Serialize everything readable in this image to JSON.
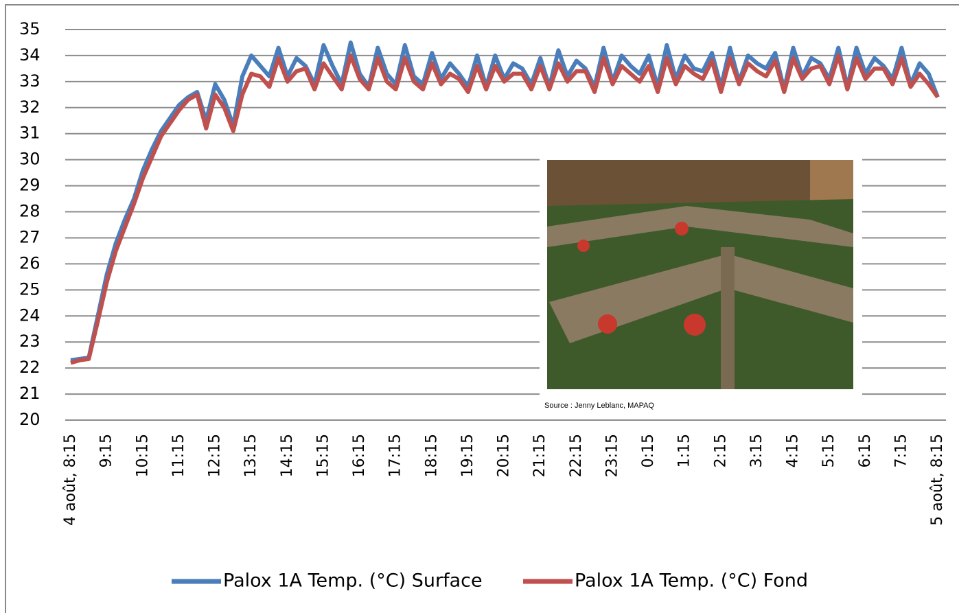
{
  "chart_data": {
    "type": "line",
    "categories": [
      "4 août, 8:15",
      null,
      null,
      null,
      "9:15",
      null,
      null,
      null,
      "10:15",
      null,
      null,
      null,
      "11:15",
      null,
      null,
      null,
      "12:15",
      null,
      null,
      null,
      "13:15",
      null,
      null,
      null,
      "14:15",
      null,
      null,
      null,
      "15:15",
      null,
      null,
      null,
      "16:15",
      null,
      null,
      null,
      "17:15",
      null,
      null,
      null,
      "18:15",
      null,
      null,
      null,
      "19:15",
      null,
      null,
      null,
      "20:15",
      null,
      null,
      null,
      "21:15",
      null,
      null,
      null,
      "22:15",
      null,
      null,
      null,
      "23:15",
      null,
      null,
      null,
      "0:15",
      null,
      null,
      null,
      "1:15",
      null,
      null,
      null,
      "2:15",
      null,
      null,
      null,
      "3:15",
      null,
      null,
      null,
      "4:15",
      null,
      null,
      null,
      "5:15",
      null,
      null,
      null,
      "6:15",
      null,
      null,
      null,
      "7:15",
      null,
      null,
      null,
      "5 août, 8:15"
    ],
    "series": [
      {
        "name": "Palox 1A Temp. (°C) Surface",
        "color": "#4a7ebb",
        "values": [
          22.3,
          22.35,
          22.4,
          24.0,
          25.6,
          26.8,
          27.7,
          28.5,
          29.6,
          30.4,
          31.1,
          31.6,
          32.1,
          32.4,
          32.6,
          31.5,
          32.9,
          32.3,
          31.3,
          33.2,
          34.0,
          33.6,
          33.2,
          34.3,
          33.2,
          33.9,
          33.6,
          32.9,
          34.4,
          33.6,
          32.9,
          34.5,
          33.3,
          32.8,
          34.3,
          33.3,
          32.9,
          34.4,
          33.2,
          32.9,
          34.1,
          33.1,
          33.7,
          33.3,
          32.8,
          34.0,
          32.8,
          34.0,
          33.1,
          33.7,
          33.5,
          32.9,
          33.9,
          32.8,
          34.2,
          33.2,
          33.8,
          33.5,
          32.8,
          34.3,
          33.0,
          34.0,
          33.6,
          33.3,
          34.0,
          32.8,
          34.4,
          33.1,
          34.0,
          33.5,
          33.4,
          34.1,
          32.8,
          34.3,
          33.0,
          34.0,
          33.7,
          33.5,
          34.1,
          32.7,
          34.3,
          33.2,
          33.9,
          33.7,
          33.1,
          34.3,
          32.8,
          34.3,
          33.3,
          33.9,
          33.6,
          33.1,
          34.3,
          32.9,
          33.7,
          33.3,
          32.4
        ]
      },
      {
        "name": "Palox 1A Temp. (°C) Fond",
        "color": "#c0504d",
        "values": [
          22.2,
          22.3,
          22.35,
          23.8,
          25.3,
          26.5,
          27.4,
          28.3,
          29.3,
          30.1,
          30.9,
          31.4,
          31.9,
          32.3,
          32.5,
          31.2,
          32.5,
          32.0,
          31.1,
          32.5,
          33.3,
          33.2,
          32.8,
          33.9,
          33.0,
          33.4,
          33.5,
          32.7,
          33.7,
          33.2,
          32.7,
          34.0,
          33.1,
          32.7,
          33.9,
          33.0,
          32.7,
          33.9,
          33.0,
          32.7,
          33.7,
          32.9,
          33.3,
          33.1,
          32.6,
          33.6,
          32.7,
          33.6,
          33.0,
          33.3,
          33.3,
          32.7,
          33.6,
          32.7,
          33.7,
          33.0,
          33.4,
          33.4,
          32.6,
          33.9,
          32.9,
          33.6,
          33.3,
          33.0,
          33.6,
          32.6,
          33.9,
          32.9,
          33.6,
          33.3,
          33.1,
          33.8,
          32.6,
          33.9,
          32.9,
          33.7,
          33.4,
          33.2,
          33.8,
          32.6,
          33.9,
          33.1,
          33.5,
          33.6,
          32.9,
          34.0,
          32.7,
          33.9,
          33.1,
          33.5,
          33.5,
          32.9,
          33.9,
          32.8,
          33.3,
          32.9,
          32.4
        ]
      }
    ],
    "ylim": [
      20,
      35
    ],
    "yticks": [
      20,
      21,
      22,
      23,
      24,
      25,
      26,
      27,
      28,
      29,
      30,
      31,
      32,
      33,
      34,
      35
    ],
    "grid": true,
    "legend": "bottom",
    "source": "Source : Jenny Leblanc, MAPAQ"
  }
}
